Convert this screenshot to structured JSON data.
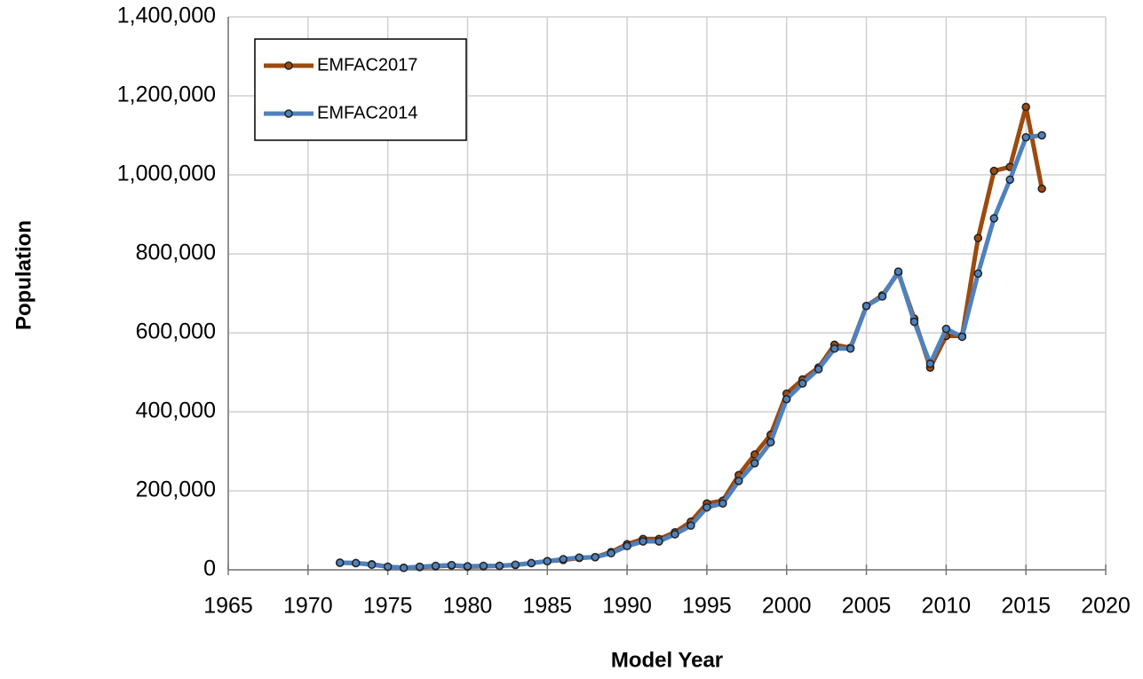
{
  "chart_data": {
    "type": "line",
    "x_label": "Model Year",
    "y_label": "Population",
    "x": [
      1972,
      1973,
      1974,
      1975,
      1976,
      1977,
      1978,
      1979,
      1980,
      1981,
      1982,
      1983,
      1984,
      1985,
      1986,
      1987,
      1988,
      1989,
      1990,
      1991,
      1992,
      1993,
      1994,
      1995,
      1996,
      1997,
      1998,
      1999,
      2000,
      2001,
      2002,
      2003,
      2004,
      2005,
      2006,
      2007,
      2008,
      2009,
      2010,
      2011,
      2012,
      2013,
      2014,
      2015,
      2016
    ],
    "series": [
      {
        "name": "EMFAC2017",
        "color": "#9c4a0e",
        "values": [
          18000,
          17000,
          14000,
          8000,
          5000,
          7000,
          9000,
          11000,
          8000,
          9000,
          10000,
          12000,
          17000,
          22000,
          25000,
          30000,
          32000,
          45000,
          65000,
          78000,
          78000,
          95000,
          122000,
          168000,
          175000,
          240000,
          292000,
          342000,
          446000,
          482000,
          512000,
          570000,
          562000,
          668000,
          695000,
          752000,
          636000,
          512000,
          592000,
          592000,
          840000,
          1010000,
          1020000,
          1172000,
          965000
        ]
      },
      {
        "name": "EMFAC2014",
        "color": "#4f81bd",
        "values": [
          18000,
          17000,
          13000,
          8000,
          5000,
          8000,
          10000,
          12000,
          9000,
          10000,
          10000,
          13000,
          17000,
          22000,
          27000,
          31000,
          32000,
          42000,
          60000,
          72000,
          72000,
          90000,
          112000,
          158000,
          168000,
          225000,
          270000,
          323000,
          432000,
          472000,
          508000,
          560000,
          560000,
          668000,
          692000,
          755000,
          628000,
          522000,
          610000,
          590000,
          750000,
          890000,
          988000,
          1095000,
          1100000
        ]
      }
    ],
    "xlim": [
      1965,
      2020
    ],
    "xticks": [
      1965,
      1970,
      1975,
      1980,
      1985,
      1990,
      1995,
      2000,
      2005,
      2010,
      2015,
      2020
    ],
    "ylim": [
      0,
      1400000
    ],
    "yticks": [
      0,
      {
        "value": 200000,
        "label": "200,000"
      },
      {
        "value": 400000,
        "label": "400,000"
      },
      {
        "value": 600000,
        "label": "600,000"
      },
      {
        "value": 800000,
        "label": "800,000"
      },
      {
        "value": 1000000,
        "label": "1,000,000"
      },
      {
        "value": 1200000,
        "label": "1,200,000"
      },
      {
        "value": 1400000,
        "label": "1,400,000"
      }
    ],
    "grid": true,
    "legend_position": "upper left"
  }
}
